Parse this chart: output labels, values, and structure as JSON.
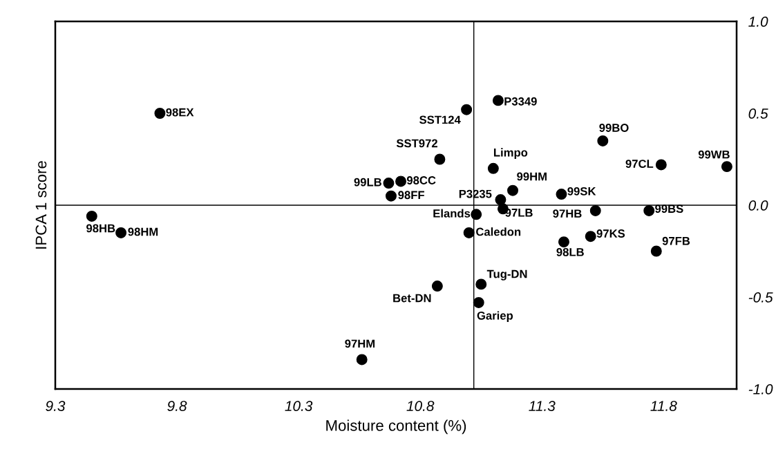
{
  "chart_data": {
    "type": "scatter",
    "xlabel": "Moisture content (%)",
    "ylabel": "IPCA 1 score",
    "xlim": [
      9.3,
      12.1
    ],
    "xticks": [
      9.3,
      9.8,
      10.3,
      10.8,
      11.3,
      11.8
    ],
    "ylim": [
      -1.0,
      1.0
    ],
    "yticks": [
      {
        "value": 1.0,
        "label": "1.0"
      },
      {
        "value": 0.5,
        "label": "0.5"
      },
      {
        "value": 0.0,
        "label": "0.0"
      },
      {
        "value": -0.5,
        "label": "-0.5"
      },
      {
        "value": -1.0,
        "label": "-1.0"
      }
    ],
    "grid": false,
    "marker": "circle",
    "series": [
      {
        "color": "#000000",
        "x": [
          9.73,
          9.45,
          9.57,
          10.99,
          11.12,
          10.88,
          11.1,
          10.67,
          10.72,
          10.68,
          11.18,
          11.13,
          11.14,
          11.03,
          11.0,
          11.38,
          11.39,
          11.05,
          10.87,
          11.04,
          11.52,
          11.5,
          11.55,
          11.79,
          12.06,
          11.74,
          11.77,
          10.56
        ],
        "values": [
          0.5,
          -0.06,
          -0.15,
          0.52,
          0.57,
          0.25,
          0.2,
          0.12,
          0.13,
          0.05,
          0.08,
          0.03,
          -0.02,
          -0.05,
          -0.15,
          0.06,
          -0.2,
          -0.43,
          -0.44,
          -0.53,
          -0.03,
          -0.17,
          0.35,
          0.22,
          0.21,
          -0.03,
          -0.25,
          -0.84
        ]
      }
    ],
    "ref_lines": [
      {
        "axis": "y",
        "value": 0.0,
        "color": "#000000"
      },
      {
        "axis": "x",
        "value": 11.02,
        "color": "#000000"
      }
    ],
    "annotations": [
      {
        "text": "98EX",
        "x": 9.73,
        "y": 0.5
      },
      {
        "text": "98HB",
        "x": 9.45,
        "y": -0.06
      },
      {
        "text": "98HM",
        "x": 9.57,
        "y": -0.15
      },
      {
        "text": "SST124",
        "x": 10.99,
        "y": 0.52
      },
      {
        "text": "P3349",
        "x": 11.12,
        "y": 0.57
      },
      {
        "text": "SST972",
        "x": 10.88,
        "y": 0.25
      },
      {
        "text": "Limpo",
        "x": 11.1,
        "y": 0.2
      },
      {
        "text": "99LB",
        "x": 10.67,
        "y": 0.12
      },
      {
        "text": "98CC",
        "x": 10.72,
        "y": 0.13
      },
      {
        "text": "98FF",
        "x": 10.68,
        "y": 0.05
      },
      {
        "text": "99HM",
        "x": 11.18,
        "y": 0.08
      },
      {
        "text": "P3235",
        "x": 11.13,
        "y": 0.03
      },
      {
        "text": "97LB",
        "x": 11.14,
        "y": -0.02
      },
      {
        "text": "Elands",
        "x": 11.03,
        "y": -0.05
      },
      {
        "text": "Caledon",
        "x": 11.0,
        "y": -0.15
      },
      {
        "text": "99SK",
        "x": 11.38,
        "y": 0.06
      },
      {
        "text": "98LB",
        "x": 11.39,
        "y": -0.2
      },
      {
        "text": "Tug-DN",
        "x": 11.05,
        "y": -0.43
      },
      {
        "text": "Bet-DN",
        "x": 10.87,
        "y": -0.44
      },
      {
        "text": "Gariep",
        "x": 11.04,
        "y": -0.53
      },
      {
        "text": "97HB",
        "x": 11.52,
        "y": -0.03
      },
      {
        "text": "97KS",
        "x": 11.5,
        "y": -0.17
      },
      {
        "text": "99BO",
        "x": 11.55,
        "y": 0.35
      },
      {
        "text": "97CL",
        "x": 11.79,
        "y": 0.22
      },
      {
        "text": "99WB",
        "x": 12.06,
        "y": 0.21
      },
      {
        "text": "99BS",
        "x": 11.74,
        "y": -0.03
      },
      {
        "text": "97FB",
        "x": 11.77,
        "y": -0.25
      },
      {
        "text": "97HM",
        "x": 10.56,
        "y": -0.84
      }
    ]
  }
}
